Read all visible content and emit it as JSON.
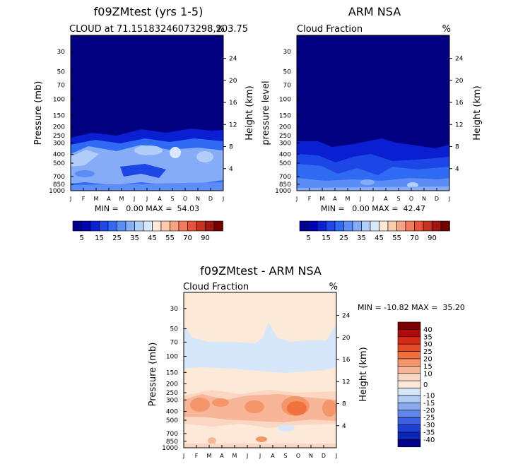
{
  "chart_data": [
    {
      "type": "heatmap",
      "title": "f09ZMtest (yrs 1-5)",
      "subtitle_left": "CLOUD at 71.15183246073298,203.75",
      "subtitle_right": "%",
      "ylabel": "Pressure (mb)",
      "ylabel_right": "Height (km)",
      "x_ticks": [
        "J",
        "F",
        "M",
        "A",
        "M",
        "J",
        "J",
        "A",
        "S",
        "O",
        "N",
        "D",
        "J"
      ],
      "y_ticks": [
        "30",
        "50",
        "70",
        "100",
        "150",
        "200",
        "250",
        "300",
        "400",
        "500",
        "700",
        "850",
        "1000"
      ],
      "y_right_ticks": [
        "24",
        "20",
        "16",
        "12",
        "8",
        "4"
      ],
      "stats": "MIN =   0.00 MAX =  54.03",
      "min": 0.0,
      "max": 54.03,
      "colorbar": {
        "labels": [
          "5",
          "15",
          "25",
          "35",
          "45",
          "55",
          "70",
          "90"
        ],
        "levels": [
          0,
          5,
          10,
          15,
          20,
          25,
          30,
          35,
          40,
          45,
          50,
          55,
          60,
          70,
          80,
          90,
          100
        ],
        "colors": [
          "#00008b",
          "#0000b4",
          "#0a1fd2",
          "#1c46e6",
          "#2f6af2",
          "#5c8cf5",
          "#87acf7",
          "#b3cdf9",
          "#d8e7fb",
          "#fde9d8",
          "#fbc9ae",
          "#f7a383",
          "#f27c5a",
          "#e4533a",
          "#c8301f",
          "#a0150f",
          "#730000"
        ]
      }
    },
    {
      "type": "heatmap",
      "title": "ARM NSA",
      "subtitle_left": "Cloud Fraction",
      "subtitle_right": "%",
      "ylabel": "pressure level",
      "ylabel_right": "Height (km)",
      "x_ticks": [
        "J",
        "F",
        "M",
        "A",
        "M",
        "J",
        "J",
        "A",
        "S",
        "O",
        "N",
        "D",
        "J"
      ],
      "y_ticks": [
        "30",
        "50",
        "70",
        "100",
        "150",
        "200",
        "250",
        "300",
        "400",
        "500",
        "700",
        "850",
        "1000"
      ],
      "y_right_ticks": [
        "24",
        "20",
        "16",
        "12",
        "8",
        "4"
      ],
      "stats": "MIN =   0.00 MAX =  42.47",
      "min": 0.0,
      "max": 42.47,
      "colorbar": {
        "labels": [
          "5",
          "15",
          "25",
          "35",
          "45",
          "55",
          "70",
          "90"
        ]
      }
    },
    {
      "type": "heatmap",
      "title": "f09ZMtest - ARM NSA",
      "subtitle_left": "Cloud Fraction",
      "subtitle_right": "%",
      "ylabel": "Pressure (mb)",
      "ylabel_right": "Height (km)",
      "x_ticks": [
        "J",
        "F",
        "M",
        "A",
        "M",
        "J",
        "J",
        "A",
        "S",
        "O",
        "N",
        "D",
        "J"
      ],
      "y_ticks": [
        "30",
        "50",
        "70",
        "100",
        "150",
        "200",
        "250",
        "300",
        "400",
        "500",
        "700",
        "850",
        "1000"
      ],
      "y_right_ticks": [
        "24",
        "20",
        "16",
        "12",
        "8",
        "4"
      ],
      "stats": "MIN = -10.82 MAX =  35.20",
      "min": -10.82,
      "max": 35.2,
      "colorbar": {
        "labels": [
          "40",
          "35",
          "30",
          "25",
          "20",
          "15",
          "10",
          "0",
          "-10",
          "-15",
          "-20",
          "-25",
          "-30",
          "-35",
          "-40"
        ],
        "colors": [
          "#7a0000",
          "#b00a0a",
          "#d62a16",
          "#e84a26",
          "#f0703e",
          "#f5956a",
          "#f8b698",
          "#fbd6c2",
          "#fde9d8",
          "#d7e7fa",
          "#b2cbf4",
          "#8aaaf0",
          "#5f86ec",
          "#3a60e5",
          "#1e3fd6",
          "#0d24b8",
          "#00008b"
        ]
      }
    }
  ]
}
